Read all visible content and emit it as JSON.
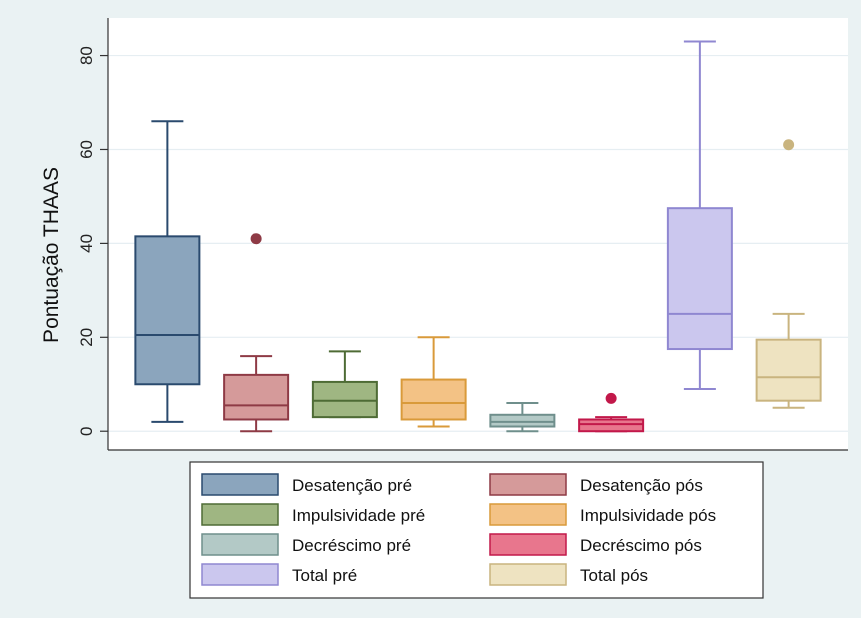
{
  "chart_data": {
    "type": "boxplot",
    "ylabel": "Pontuação THAAS",
    "xlabel": "",
    "ylim": [
      -4,
      88
    ],
    "yticks": [
      0,
      20,
      40,
      60,
      80
    ],
    "grid": true,
    "legend_position": "bottom",
    "series": [
      {
        "name": "Desatenção pré",
        "color": "#8ba5bd",
        "edge": "#2a4a6e",
        "whisker_low": 2,
        "q1": 10,
        "median": 20.5,
        "q3": 41.5,
        "whisker_high": 66,
        "outliers": []
      },
      {
        "name": "Desatenção pós",
        "color": "#d59a9a",
        "edge": "#8e3a45",
        "whisker_low": 0,
        "q1": 2.5,
        "median": 5.5,
        "q3": 12,
        "whisker_high": 16,
        "outliers": [
          41
        ]
      },
      {
        "name": "Impulsividade pré",
        "color": "#9fb682",
        "edge": "#4e6b35",
        "whisker_low": 3,
        "q1": 3,
        "median": 6.5,
        "q3": 10.5,
        "whisker_high": 17,
        "outliers": []
      },
      {
        "name": "Impulsividade pós",
        "color": "#f3c285",
        "edge": "#d99a3a",
        "whisker_low": 1,
        "q1": 2.5,
        "median": 6,
        "q3": 11,
        "whisker_high": 20,
        "outliers": []
      },
      {
        "name": "Decréscimo pré",
        "color": "#b3c9c6",
        "edge": "#6f8f8c",
        "whisker_low": 0,
        "q1": 1,
        "median": 2,
        "q3": 3.5,
        "whisker_high": 6,
        "outliers": []
      },
      {
        "name": "Decréscimo pós",
        "color": "#e8768d",
        "edge": "#c2184a",
        "whisker_low": 0,
        "q1": 0,
        "median": 1.5,
        "q3": 2.5,
        "whisker_high": 3,
        "outliers": [
          7
        ]
      },
      {
        "name": "Total pré",
        "color": "#cbc7ee",
        "edge": "#8f87d1",
        "whisker_low": 9,
        "q1": 17.5,
        "median": 25,
        "q3": 47.5,
        "whisker_high": 83,
        "outliers": []
      },
      {
        "name": "Total pós",
        "color": "#eee3c1",
        "edge": "#c9b47f",
        "whisker_low": 5,
        "q1": 6.5,
        "median": 11.5,
        "q3": 19.5,
        "whisker_high": 25,
        "outliers": [
          61
        ]
      }
    ]
  }
}
